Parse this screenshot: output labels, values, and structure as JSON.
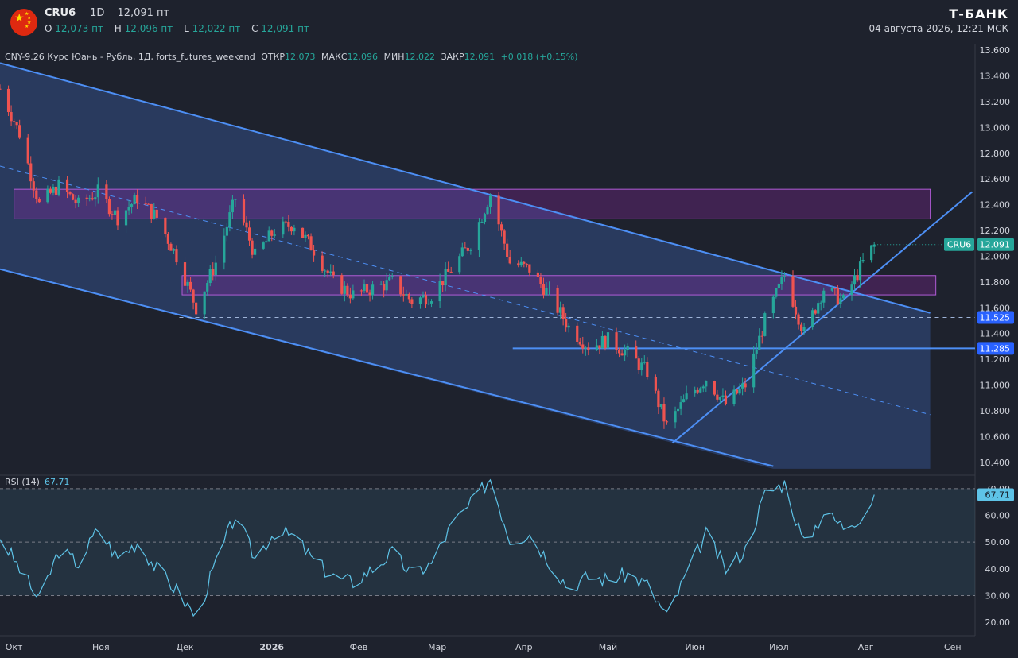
{
  "header": {
    "symbol": "CRU6",
    "timeframe": "1D",
    "price": "12,091 пт",
    "ohlc": {
      "o_label": "O",
      "o": "12,073 пт",
      "h_label": "H",
      "h": "12,096 пт",
      "l_label": "L",
      "l": "12,022 пт",
      "c_label": "C",
      "c": "12,091 пт"
    },
    "brand": "Т-БАНК",
    "datetime": "04 августа 2026, 12:21 МСК",
    "flag_icon": "china-flag-icon"
  },
  "legend": {
    "title": "CNY-9.26 Курс Юань - Рубль, 1Д, forts_futures_weekend",
    "open_label": "ОТКР",
    "open": "12.073",
    "high_label": "МАКС",
    "high": "12.096",
    "low_label": "МИН",
    "low": "12.022",
    "close_label": "ЗАКР",
    "close": "12.091",
    "change": "+0.018 (+0.15%)"
  },
  "rsi": {
    "label": "RSI (14)",
    "value": "67.71"
  },
  "colors": {
    "up": "#26a69a",
    "down": "#ef5350",
    "line": "#4d8ff5",
    "zone": "#9c27b0",
    "rsi": "#5ec3e7",
    "bg": "#1e222d"
  },
  "chart_data": {
    "type": "candlestick",
    "price_axis": {
      "range": [
        10.3,
        13.65
      ],
      "ticks": [
        "13.600",
        "13.400",
        "13.200",
        "13.000",
        "12.800",
        "12.600",
        "12.400",
        "12.200",
        "12.000",
        "11.800",
        "11.600",
        "11.400",
        "11.200",
        "11.000",
        "10.800",
        "10.600",
        "10.400"
      ]
    },
    "price_labels": [
      {
        "text": "CRU6",
        "value": "12.091",
        "price": 12.091,
        "kind": "last"
      },
      {
        "value": "11.525",
        "price": 11.525,
        "kind": "level"
      },
      {
        "value": "11.285",
        "price": 11.285,
        "kind": "level"
      }
    ],
    "rsi_axis": {
      "range": [
        15,
        75
      ],
      "ticks": [
        "70.00",
        "60.00",
        "50.00",
        "40.00",
        "30.00",
        "20.00"
      ],
      "last": "67.71",
      "bands": [
        30,
        50,
        70
      ]
    },
    "x_axis": {
      "start": "2025-09-26",
      "end": "2026-09-09",
      "labels": [
        {
          "text": "Окт",
          "date": "2025-10-01"
        },
        {
          "text": "Ноя",
          "date": "2025-11-01"
        },
        {
          "text": "Дек",
          "date": "2025-12-01"
        },
        {
          "text": "2026",
          "date": "2026-01-01",
          "bold": true
        },
        {
          "text": "Фев",
          "date": "2026-02-01"
        },
        {
          "text": "Мар",
          "date": "2026-03-01"
        },
        {
          "text": "Апр",
          "date": "2026-04-01"
        },
        {
          "text": "Май",
          "date": "2026-05-01"
        },
        {
          "text": "Июн",
          "date": "2026-06-01"
        },
        {
          "text": "Июл",
          "date": "2026-07-01"
        },
        {
          "text": "Авг",
          "date": "2026-08-01"
        },
        {
          "text": "Сен",
          "date": "2026-09-01"
        }
      ]
    },
    "path_points": [
      [
        "2025-09-26",
        13.3
      ],
      [
        "2025-10-03",
        12.95
      ],
      [
        "2025-10-10",
        12.4
      ],
      [
        "2025-10-17",
        12.55
      ],
      [
        "2025-10-24",
        12.4
      ],
      [
        "2025-10-31",
        12.5
      ],
      [
        "2025-11-07",
        12.3
      ],
      [
        "2025-11-14",
        12.45
      ],
      [
        "2025-11-21",
        12.3
      ],
      [
        "2025-11-28",
        12.0
      ],
      [
        "2025-12-05",
        11.6
      ],
      [
        "2025-12-12",
        11.95
      ],
      [
        "2025-12-19",
        12.45
      ],
      [
        "2025-12-26",
        12.0
      ],
      [
        "2026-01-02",
        12.2
      ],
      [
        "2026-01-09",
        12.25
      ],
      [
        "2026-01-16",
        12.05
      ],
      [
        "2026-01-23",
        11.8
      ],
      [
        "2026-01-30",
        11.7
      ],
      [
        "2026-02-06",
        11.75
      ],
      [
        "2026-02-13",
        11.8
      ],
      [
        "2026-02-20",
        11.65
      ],
      [
        "2026-02-27",
        11.7
      ],
      [
        "2026-03-06",
        11.9
      ],
      [
        "2026-03-13",
        12.1
      ],
      [
        "2026-03-20",
        12.48
      ],
      [
        "2026-03-27",
        11.95
      ],
      [
        "2026-04-03",
        11.9
      ],
      [
        "2026-04-10",
        11.7
      ],
      [
        "2026-04-17",
        11.45
      ],
      [
        "2026-04-24",
        11.3
      ],
      [
        "2026-05-01",
        11.35
      ],
      [
        "2026-05-08",
        11.25
      ],
      [
        "2026-05-15",
        11.1
      ],
      [
        "2026-05-22",
        10.68
      ],
      [
        "2026-05-29",
        10.9
      ],
      [
        "2026-06-05",
        11.05
      ],
      [
        "2026-06-12",
        10.85
      ],
      [
        "2026-06-19",
        11.0
      ],
      [
        "2026-06-26",
        11.5
      ],
      [
        "2026-07-03",
        11.85
      ],
      [
        "2026-07-10",
        11.4
      ],
      [
        "2026-07-17",
        11.75
      ],
      [
        "2026-07-24",
        11.65
      ],
      [
        "2026-07-31",
        11.95
      ],
      [
        "2026-08-04",
        12.091
      ]
    ],
    "rsi_points": [
      [
        "2025-09-26",
        52
      ],
      [
        "2025-10-03",
        40
      ],
      [
        "2025-10-10",
        28
      ],
      [
        "2025-10-17",
        47
      ],
      [
        "2025-10-24",
        42
      ],
      [
        "2025-10-31",
        55
      ],
      [
        "2025-11-07",
        44
      ],
      [
        "2025-11-14",
        50
      ],
      [
        "2025-11-21",
        40
      ],
      [
        "2025-11-28",
        32
      ],
      [
        "2025-12-05",
        22
      ],
      [
        "2025-12-12",
        42
      ],
      [
        "2025-12-19",
        60
      ],
      [
        "2025-12-26",
        44
      ],
      [
        "2026-01-02",
        54
      ],
      [
        "2026-01-09",
        52
      ],
      [
        "2026-01-16",
        43
      ],
      [
        "2026-01-23",
        37
      ],
      [
        "2026-01-30",
        35
      ],
      [
        "2026-02-06",
        40
      ],
      [
        "2026-02-13",
        46
      ],
      [
        "2026-02-20",
        38
      ],
      [
        "2026-02-27",
        42
      ],
      [
        "2026-03-06",
        56
      ],
      [
        "2026-03-13",
        64
      ],
      [
        "2026-03-20",
        74
      ],
      [
        "2026-03-27",
        51
      ],
      [
        "2026-04-03",
        53
      ],
      [
        "2026-04-10",
        43
      ],
      [
        "2026-04-17",
        33
      ],
      [
        "2026-04-24",
        37
      ],
      [
        "2026-05-01",
        36
      ],
      [
        "2026-05-08",
        38
      ],
      [
        "2026-05-15",
        34
      ],
      [
        "2026-05-22",
        22
      ],
      [
        "2026-05-29",
        38
      ],
      [
        "2026-06-05",
        53
      ],
      [
        "2026-06-12",
        40
      ],
      [
        "2026-06-19",
        47
      ],
      [
        "2026-06-26",
        68
      ],
      [
        "2026-07-03",
        72
      ],
      [
        "2026-07-10",
        49
      ],
      [
        "2026-07-17",
        61
      ],
      [
        "2026-07-24",
        56
      ],
      [
        "2026-07-31",
        60
      ],
      [
        "2026-08-04",
        67.71
      ]
    ],
    "drawings": {
      "channel_upper": [
        [
          "2025-09-26",
          13.5
        ],
        [
          "2026-08-24",
          11.56
        ]
      ],
      "channel_lower": [
        [
          "2025-09-26",
          11.9
        ],
        [
          "2026-06-29",
          10.37
        ]
      ],
      "channel_mid": [
        [
          "2025-09-26",
          12.7
        ],
        [
          "2026-08-24",
          10.77
        ]
      ],
      "channel_fill": [
        [
          "2025-09-26",
          13.5
        ],
        [
          "2026-08-24",
          11.56
        ],
        [
          "2026-08-24",
          10.35
        ],
        [
          "2026-06-29",
          10.35
        ],
        [
          "2025-09-26",
          11.9
        ]
      ],
      "support_trend": [
        [
          "2026-05-24",
          10.55
        ],
        [
          "2026-09-08",
          12.5
        ]
      ],
      "resistance_zone_top": {
        "from": "2025-10-01",
        "to": "2026-08-24",
        "top": 12.52,
        "bottom": 12.29
      },
      "resistance_zone_mid": {
        "from": "2025-11-30",
        "to": "2026-08-26",
        "top": 11.85,
        "bottom": 11.7
      },
      "level_1": {
        "price": 11.525,
        "from": "2025-11-29",
        "to": "2026-09-09",
        "dashed": true
      },
      "level_2": {
        "price": 11.285,
        "from": "2026-03-28",
        "to": "2026-09-09",
        "dashed": false
      }
    }
  }
}
